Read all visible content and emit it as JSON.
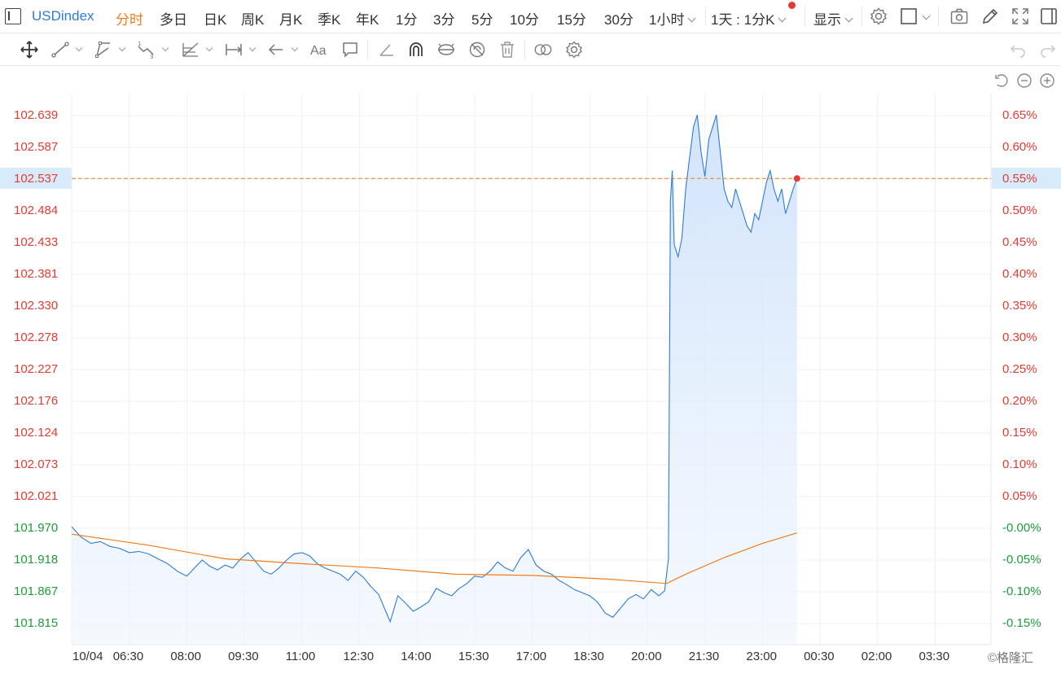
{
  "toolbar": {
    "symbol": "USDindex",
    "periods": [
      "分时",
      "多日",
      "日K",
      "周K",
      "月K",
      "季K",
      "年K",
      "1分",
      "3分",
      "5分",
      "10分",
      "15分",
      "30分"
    ],
    "hour_dropdown": "1小时",
    "interval_label": "1天 : 1分K",
    "display_label": "显示",
    "icons": [
      "settings-icon",
      "layout-icon",
      "camera-icon",
      "pencil-icon",
      "fullscreen-icon",
      "panel-icon"
    ]
  },
  "drawing_tools": [
    "crosshair",
    "trend-line",
    "channel",
    "pattern",
    "fibonacci",
    "measure",
    "arrow",
    "text",
    "comment",
    "angle",
    "magnet",
    "visibility",
    "hide",
    "delete",
    "compare",
    "settings"
  ],
  "chart": {
    "accent_line": "#2e7bd6",
    "fill": "#cfe2fb",
    "avg_line": "#f07c1a",
    "up_color": "#e03c31",
    "down_color": "#1e9c3a",
    "price_line_label": "102.537"
  },
  "chart_data": {
    "type": "area",
    "title": "",
    "xlabel": "",
    "ylabel": "",
    "y_left_ticks": [
      "102.639",
      "102.587",
      "102.537",
      "102.484",
      "102.433",
      "102.381",
      "102.330",
      "102.278",
      "102.227",
      "102.176",
      "102.124",
      "102.073",
      "102.021",
      "101.970",
      "101.918",
      "101.867",
      "101.815"
    ],
    "y_right_ticks": [
      "0.65%",
      "0.60%",
      "0.55%",
      "0.50%",
      "0.45%",
      "0.40%",
      "0.35%",
      "0.30%",
      "0.25%",
      "0.20%",
      "0.15%",
      "0.10%",
      "0.05%",
      "-0.00%",
      "-0.05%",
      "-0.10%",
      "-0.15%"
    ],
    "x_ticks": [
      "10/04",
      "06:30",
      "08:00",
      "09:30",
      "11:00",
      "12:30",
      "14:00",
      "15:30",
      "17:00",
      "18:30",
      "20:00",
      "21:30",
      "23:00",
      "00:30",
      "02:00",
      "03:30"
    ],
    "ylim": [
      101.8,
      102.66
    ],
    "x_range_hours": [
      "05:00",
      "04:45"
    ],
    "prev_close": 101.97,
    "last_price": 102.537,
    "series": [
      {
        "kind": "price",
        "points": [
          [
            0.0,
            101.972
          ],
          [
            0.25,
            101.955
          ],
          [
            0.5,
            101.945
          ],
          [
            0.75,
            101.948
          ],
          [
            1.0,
            101.94
          ],
          [
            1.25,
            101.937
          ],
          [
            1.5,
            101.93
          ],
          [
            1.75,
            101.932
          ],
          [
            2.0,
            101.928
          ],
          [
            2.25,
            101.92
          ],
          [
            2.5,
            101.912
          ],
          [
            2.75,
            101.9
          ],
          [
            3.0,
            101.892
          ],
          [
            3.2,
            101.905
          ],
          [
            3.4,
            101.918
          ],
          [
            3.6,
            101.908
          ],
          [
            3.8,
            101.902
          ],
          [
            4.0,
            101.91
          ],
          [
            4.2,
            101.905
          ],
          [
            4.4,
            101.92
          ],
          [
            4.6,
            101.93
          ],
          [
            4.8,
            101.915
          ],
          [
            5.0,
            101.9
          ],
          [
            5.2,
            101.895
          ],
          [
            5.4,
            101.905
          ],
          [
            5.6,
            101.918
          ],
          [
            5.8,
            101.928
          ],
          [
            6.0,
            101.93
          ],
          [
            6.2,
            101.925
          ],
          [
            6.4,
            101.912
          ],
          [
            6.6,
            101.905
          ],
          [
            6.8,
            101.9
          ],
          [
            7.0,
            101.895
          ],
          [
            7.2,
            101.885
          ],
          [
            7.4,
            101.9
          ],
          [
            7.6,
            101.89
          ],
          [
            7.8,
            101.875
          ],
          [
            8.0,
            101.862
          ],
          [
            8.15,
            101.84
          ],
          [
            8.3,
            101.818
          ],
          [
            8.5,
            101.86
          ],
          [
            8.7,
            101.848
          ],
          [
            8.9,
            101.835
          ],
          [
            9.1,
            101.842
          ],
          [
            9.3,
            101.85
          ],
          [
            9.5,
            101.872
          ],
          [
            9.7,
            101.865
          ],
          [
            9.9,
            101.86
          ],
          [
            10.1,
            101.872
          ],
          [
            10.3,
            101.88
          ],
          [
            10.5,
            101.892
          ],
          [
            10.7,
            101.89
          ],
          [
            10.9,
            101.9
          ],
          [
            11.1,
            101.915
          ],
          [
            11.3,
            101.905
          ],
          [
            11.5,
            101.9
          ],
          [
            11.7,
            101.922
          ],
          [
            11.9,
            101.935
          ],
          [
            12.1,
            101.91
          ],
          [
            12.3,
            101.9
          ],
          [
            12.5,
            101.895
          ],
          [
            12.7,
            101.885
          ],
          [
            12.9,
            101.878
          ],
          [
            13.1,
            101.87
          ],
          [
            13.3,
            101.865
          ],
          [
            13.5,
            101.86
          ],
          [
            13.7,
            101.85
          ],
          [
            13.9,
            101.832
          ],
          [
            14.1,
            101.825
          ],
          [
            14.3,
            101.84
          ],
          [
            14.5,
            101.855
          ],
          [
            14.7,
            101.862
          ],
          [
            14.9,
            101.855
          ],
          [
            15.1,
            101.87
          ],
          [
            15.3,
            101.86
          ],
          [
            15.45,
            101.868
          ],
          [
            15.55,
            101.92
          ],
          [
            15.6,
            102.5
          ],
          [
            15.65,
            102.55
          ],
          [
            15.7,
            102.43
          ],
          [
            15.8,
            102.41
          ],
          [
            15.9,
            102.44
          ],
          [
            16.0,
            102.52
          ],
          [
            16.1,
            102.57
          ],
          [
            16.2,
            102.62
          ],
          [
            16.3,
            102.64
          ],
          [
            16.4,
            102.58
          ],
          [
            16.5,
            102.54
          ],
          [
            16.6,
            102.6
          ],
          [
            16.7,
            102.62
          ],
          [
            16.8,
            102.64
          ],
          [
            16.9,
            102.58
          ],
          [
            17.0,
            102.52
          ],
          [
            17.1,
            102.5
          ],
          [
            17.2,
            102.49
          ],
          [
            17.3,
            102.52
          ],
          [
            17.4,
            102.5
          ],
          [
            17.5,
            102.48
          ],
          [
            17.6,
            102.46
          ],
          [
            17.7,
            102.45
          ],
          [
            17.8,
            102.48
          ],
          [
            17.9,
            102.47
          ],
          [
            18.0,
            102.5
          ],
          [
            18.1,
            102.53
          ],
          [
            18.2,
            102.55
          ],
          [
            18.3,
            102.52
          ],
          [
            18.4,
            102.5
          ],
          [
            18.5,
            102.52
          ],
          [
            18.6,
            102.48
          ],
          [
            18.7,
            102.5
          ],
          [
            18.8,
            102.52
          ],
          [
            18.9,
            102.537
          ]
        ]
      },
      {
        "kind": "average",
        "points": [
          [
            0.0,
            101.96
          ],
          [
            2.0,
            101.942
          ],
          [
            4.0,
            101.92
          ],
          [
            6.0,
            101.912
          ],
          [
            8.0,
            101.905
          ],
          [
            10.0,
            101.895
          ],
          [
            12.0,
            101.893
          ],
          [
            14.0,
            101.887
          ],
          [
            15.5,
            101.88
          ],
          [
            16.0,
            101.895
          ],
          [
            17.0,
            101.922
          ],
          [
            18.0,
            101.945
          ],
          [
            18.9,
            101.962
          ]
        ]
      }
    ]
  },
  "footer": {
    "watermark": "©格隆汇"
  }
}
